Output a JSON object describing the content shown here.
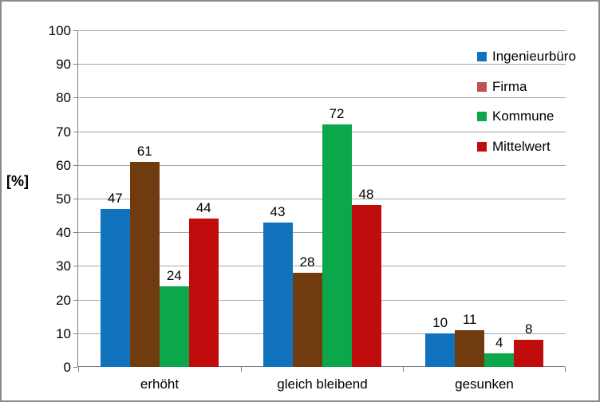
{
  "frame": {
    "border_color": "#8a8a8a",
    "background_color": "#ffffff"
  },
  "chart_data": {
    "type": "bar",
    "title": "",
    "xlabel": "",
    "ylabel": "[%]",
    "categories": [
      "erhöht",
      "gleich bleibend",
      "gesunken"
    ],
    "series": [
      {
        "name": "Ingenieurbüro",
        "color": "#1173BD",
        "legend_color": "#1173BD",
        "values": [
          47,
          43,
          10
        ]
      },
      {
        "name": "Firma",
        "color": "#713B10",
        "legend_color": "#BE524E",
        "values": [
          61,
          28,
          11
        ]
      },
      {
        "name": "Kommune",
        "color": "#0CA64B",
        "legend_color": "#0CA64B",
        "values": [
          24,
          72,
          4
        ]
      },
      {
        "name": "Mittelwert",
        "color": "#C00C0C",
        "legend_color": "#C00C0C",
        "values": [
          44,
          48,
          8
        ]
      }
    ],
    "ylim": [
      0,
      100
    ],
    "ytick_step": 10,
    "ytick_labels": [
      "0",
      "10",
      "20",
      "30",
      "40",
      "50",
      "60",
      "70",
      "80",
      "90",
      "100"
    ],
    "grid": true,
    "grid_color": "#A6A6A6",
    "axis_color": "#808080",
    "data_labels": true,
    "legend_position": "right-top"
  }
}
